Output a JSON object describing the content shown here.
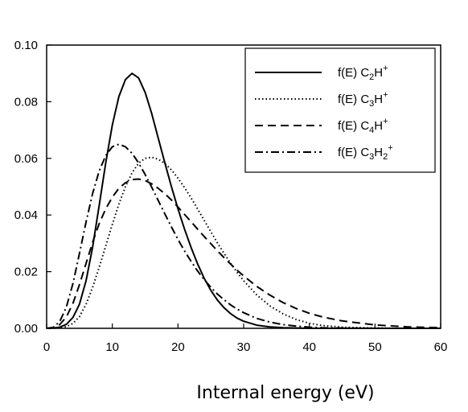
{
  "chart_data": {
    "type": "line",
    "title": "",
    "xlabel": "Internal energy (eV)",
    "ylabel": "",
    "xlim": [
      0,
      60
    ],
    "ylim": [
      0,
      0.1
    ],
    "x_ticks": [
      "0",
      "10",
      "20",
      "30",
      "40",
      "50",
      "60"
    ],
    "y_ticks": [
      "0.00",
      "0.02",
      "0.04",
      "0.06",
      "0.08",
      "0.10"
    ],
    "grid": false,
    "legend_position": "top-right",
    "series": [
      {
        "name": "f(E) C2H+",
        "legend_parts": [
          [
            "f(E) C",
            ""
          ],
          [
            "2",
            "sub"
          ],
          [
            "H",
            ""
          ],
          [
            "+",
            "sup"
          ]
        ],
        "dash": "solid",
        "x": [
          0,
          1,
          2,
          3,
          4,
          5,
          6,
          7,
          8,
          9,
          10,
          11,
          12,
          13,
          14,
          15,
          16,
          17,
          18,
          19,
          20,
          21,
          22,
          23,
          24,
          25,
          26,
          27,
          28,
          29,
          30,
          32,
          34,
          36,
          38,
          40,
          42,
          45,
          50,
          55,
          60
        ],
        "y": [
          0,
          0.0001,
          0.0004,
          0.0014,
          0.0038,
          0.0085,
          0.0168,
          0.0287,
          0.0433,
          0.0584,
          0.0718,
          0.0818,
          0.0878,
          0.09,
          0.0884,
          0.0833,
          0.0758,
          0.0671,
          0.0584,
          0.05,
          0.0422,
          0.035,
          0.0285,
          0.0227,
          0.0176,
          0.0134,
          0.01,
          0.0073,
          0.0052,
          0.0036,
          0.0025,
          0.0011,
          0.0005,
          0.0002,
          0.0001,
          0,
          0,
          0,
          0,
          0,
          0
        ]
      },
      {
        "name": "f(E) C3H+",
        "legend_parts": [
          [
            "f(E) C",
            ""
          ],
          [
            "3",
            "sub"
          ],
          [
            "H",
            ""
          ],
          [
            "+",
            "sup"
          ]
        ],
        "dash": "dotted",
        "x": [
          0,
          1,
          2,
          3,
          4,
          5,
          6,
          7,
          8,
          9,
          10,
          11,
          12,
          13,
          14,
          15,
          16,
          17,
          18,
          19,
          20,
          21,
          22,
          23,
          24,
          25,
          26,
          27,
          28,
          29,
          30,
          32,
          34,
          36,
          38,
          40,
          42,
          45,
          50,
          55,
          60
        ],
        "y": [
          0,
          0,
          0.0002,
          0.0006,
          0.0017,
          0.0041,
          0.0085,
          0.0145,
          0.0215,
          0.0291,
          0.0367,
          0.0438,
          0.05,
          0.0549,
          0.0583,
          0.06,
          0.0604,
          0.0597,
          0.0582,
          0.0559,
          0.053,
          0.0497,
          0.046,
          0.0421,
          0.0381,
          0.0341,
          0.0302,
          0.0265,
          0.023,
          0.0198,
          0.0168,
          0.0118,
          0.0079,
          0.0051,
          0.0031,
          0.0018,
          0.001,
          0.0004,
          0.0001,
          0,
          0
        ]
      },
      {
        "name": "f(E) C4H+",
        "legend_parts": [
          [
            "f(E) C",
            ""
          ],
          [
            "4",
            "sub"
          ],
          [
            "H",
            ""
          ],
          [
            "+",
            "sup"
          ]
        ],
        "dash": "dashed",
        "x": [
          0,
          1,
          2,
          3,
          4,
          5,
          6,
          7,
          8,
          9,
          10,
          11,
          12,
          13,
          14,
          15,
          16,
          17,
          18,
          19,
          20,
          21,
          22,
          23,
          24,
          25,
          26,
          27,
          28,
          29,
          30,
          32,
          34,
          36,
          38,
          40,
          42,
          45,
          50,
          55,
          60
        ],
        "y": [
          0,
          0.0002,
          0.0013,
          0.004,
          0.0088,
          0.0154,
          0.0229,
          0.0304,
          0.0369,
          0.0422,
          0.0463,
          0.0494,
          0.0514,
          0.0525,
          0.0527,
          0.0522,
          0.051,
          0.0494,
          0.0475,
          0.0453,
          0.0428,
          0.0402,
          0.0376,
          0.035,
          0.0324,
          0.0299,
          0.0274,
          0.025,
          0.0227,
          0.0205,
          0.0185,
          0.0148,
          0.0117,
          0.0091,
          0.007,
          0.0053,
          0.004,
          0.0026,
          0.0012,
          0.0005,
          0.0002
        ]
      },
      {
        "name": "f(E) C3H2+",
        "legend_parts": [
          [
            "f(E) C",
            ""
          ],
          [
            "3",
            "sub"
          ],
          [
            "H",
            ""
          ],
          [
            "2",
            "sub"
          ],
          [
            "+",
            "sup"
          ]
        ],
        "dash": "dashdot",
        "x": [
          0,
          1,
          2,
          3,
          4,
          5,
          6,
          7,
          8,
          9,
          10,
          11,
          12,
          13,
          14,
          15,
          16,
          17,
          18,
          19,
          20,
          21,
          22,
          23,
          24,
          25,
          26,
          27,
          28,
          29,
          30,
          32,
          34,
          36,
          38,
          40,
          42,
          45,
          50,
          55,
          60
        ],
        "y": [
          0,
          0.0003,
          0.0024,
          0.0075,
          0.0158,
          0.0264,
          0.0375,
          0.0476,
          0.0555,
          0.061,
          0.0641,
          0.065,
          0.0641,
          0.0618,
          0.0584,
          0.0543,
          0.0498,
          0.0451,
          0.0404,
          0.0358,
          0.0314,
          0.0273,
          0.0236,
          0.0202,
          0.0172,
          0.0145,
          0.0121,
          0.0101,
          0.0083,
          0.0068,
          0.0055,
          0.0035,
          0.0022,
          0.0013,
          0.0008,
          0.0004,
          0.0002,
          0.0001,
          0,
          0,
          0
        ]
      }
    ]
  }
}
